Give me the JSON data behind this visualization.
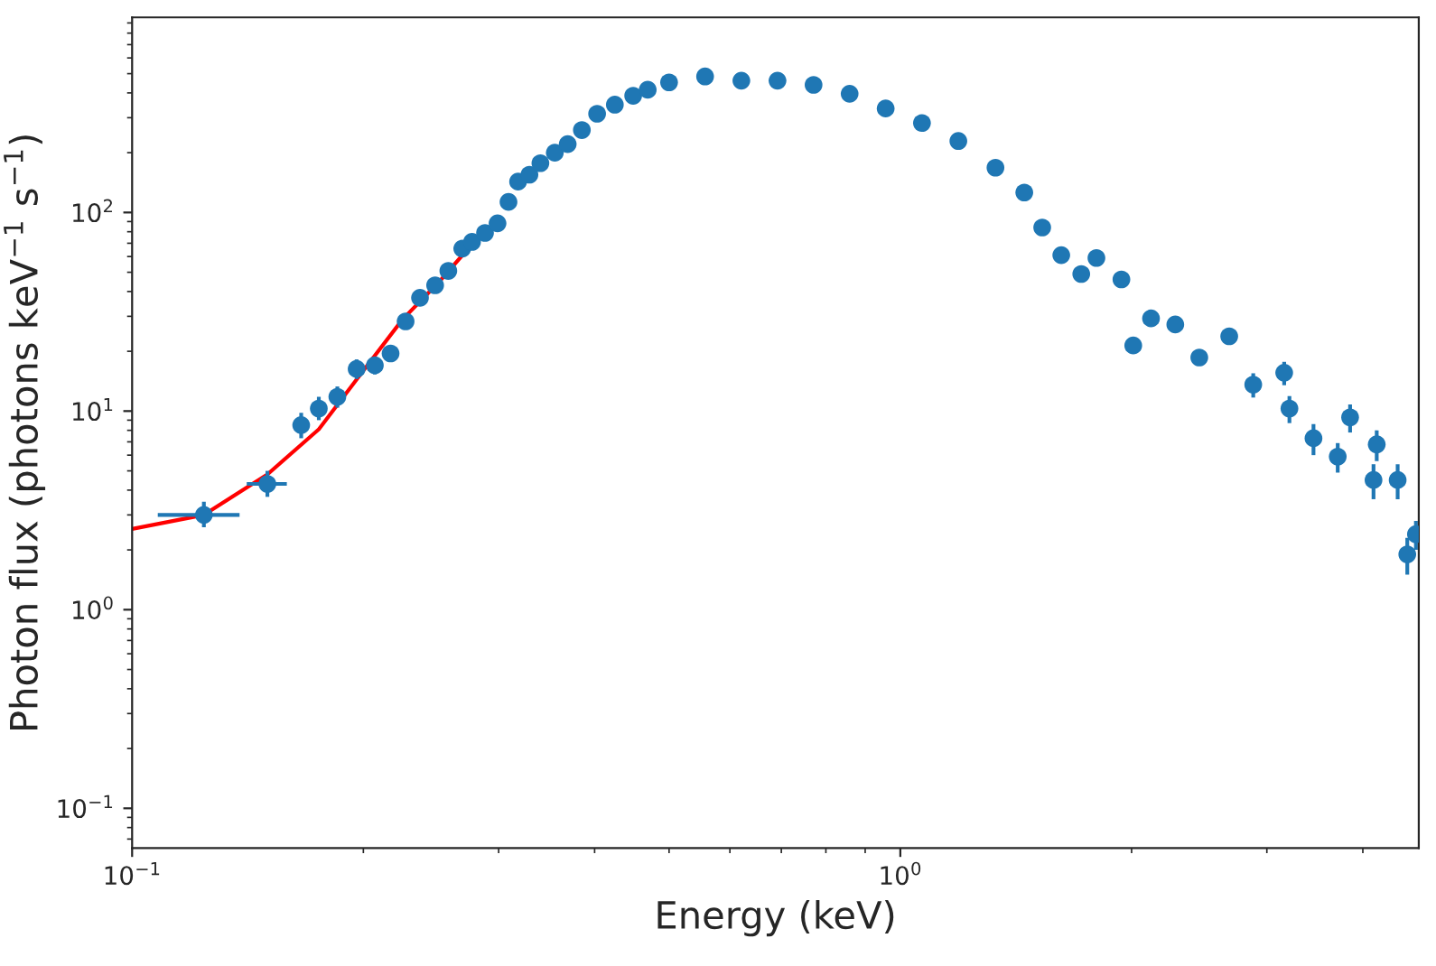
{
  "chart_data": {
    "type": "scatter",
    "xlabel": "Energy (keV)",
    "ylabel": "Photon flux (photons keV$^{−1}$ s$^{−1}$)",
    "log": "xy",
    "grid": false,
    "marker": "circle",
    "xlim": [
      0.1,
      4.73
    ],
    "ylim": [
      0.063,
      960
    ],
    "xticks": [
      {
        "value": 0.1,
        "label": "10$^{−1}$"
      },
      {
        "value": 1,
        "label": "10$^{0}$"
      }
    ],
    "yticks": [
      {
        "value": 0.1,
        "label": "10$^{−1}$"
      },
      {
        "value": 1,
        "label": "10$^{0}$"
      },
      {
        "value": 10,
        "label": "10$^{1}$"
      },
      {
        "value": 100,
        "label": "10$^{2}$"
      }
    ],
    "series": [
      {
        "color": "#1f77b4",
        "x": [
          0.124,
          0.15,
          0.166,
          0.175,
          0.185,
          0.196,
          0.207,
          0.217,
          0.227,
          0.237,
          0.248,
          0.258,
          0.269,
          0.277,
          0.288,
          0.299,
          0.309,
          0.318,
          0.329,
          0.34,
          0.355,
          0.369,
          0.385,
          0.403,
          0.425,
          0.449,
          0.469,
          0.5,
          0.557,
          0.621,
          0.692,
          0.771,
          0.859,
          0.957,
          1.067,
          1.19,
          1.33,
          1.45,
          1.53,
          1.62,
          1.72,
          1.8,
          1.94,
          2.01,
          2.12,
          2.28,
          2.45,
          2.68,
          2.88,
          3.16,
          3.21,
          3.45,
          3.71,
          3.85,
          4.13,
          4.17,
          4.44,
          4.57,
          4.69
        ],
        "values": [
          3.0,
          4.3,
          8.5,
          10.3,
          11.8,
          16.3,
          17.0,
          19.5,
          28.3,
          37.2,
          43.0,
          50.8,
          65.8,
          71.1,
          78.9,
          88.2,
          113,
          143,
          155,
          177,
          200,
          221,
          260,
          314,
          349,
          387,
          415,
          452,
          484,
          461,
          461,
          439,
          396,
          334,
          282,
          229,
          168,
          126,
          84,
          61,
          49,
          59,
          46,
          21.4,
          29.3,
          27.3,
          18.6,
          23.8,
          13.6,
          15.6,
          10.3,
          7.3,
          5.9,
          9.3,
          4.5,
          6.8,
          4.5,
          1.9,
          2.4
        ],
        "errors": [
          [
            2.6,
            3.5
          ],
          [
            3.7,
            5.0
          ],
          [
            7.3,
            9.8
          ],
          [
            9.0,
            11.8
          ],
          [
            10.4,
            13.3
          ],
          [
            14.5,
            18.2
          ],
          [
            15.3,
            18.8
          ],
          [
            17.8,
            21.3
          ],
          null,
          null,
          null,
          null,
          null,
          null,
          null,
          null,
          null,
          null,
          null,
          null,
          null,
          null,
          null,
          null,
          null,
          null,
          null,
          null,
          null,
          null,
          null,
          null,
          null,
          null,
          null,
          null,
          null,
          null,
          null,
          null,
          null,
          null,
          null,
          null,
          null,
          null,
          null,
          null,
          [
            11.7,
            15.5
          ],
          [
            13.5,
            17.7
          ],
          [
            8.7,
            11.9
          ],
          [
            6.0,
            8.6
          ],
          [
            4.9,
            6.9
          ],
          [
            7.8,
            10.8
          ],
          [
            3.6,
            5.4
          ],
          [
            5.6,
            8.0
          ],
          [
            3.6,
            5.4
          ],
          [
            1.5,
            2.3
          ],
          [
            2.0,
            2.8
          ]
        ],
        "xerrors": [
          [
            0.108,
            0.138
          ],
          [
            0.141,
            0.159
          ],
          null,
          null,
          null,
          null,
          null,
          null,
          null,
          null,
          null,
          null,
          null,
          null,
          null,
          null,
          null,
          null,
          null,
          null,
          null,
          null,
          null,
          null,
          null,
          null,
          null,
          null,
          null,
          null,
          null,
          null,
          null,
          null,
          null,
          null,
          null,
          null,
          null,
          null,
          null,
          null,
          null,
          null,
          null,
          null,
          null,
          null,
          null,
          null,
          null,
          null,
          null,
          null,
          null,
          null,
          null,
          null,
          null
        ]
      },
      {
        "type": "line",
        "color": "#ff0000",
        "marker": "none",
        "line_style": "solid",
        "x": [
          0.1,
          0.124,
          0.15,
          0.175,
          0.2,
          0.225,
          0.25,
          0.275
        ],
        "values": [
          2.55,
          3.0,
          4.8,
          8.1,
          16,
          29,
          44,
          67
        ]
      }
    ]
  }
}
